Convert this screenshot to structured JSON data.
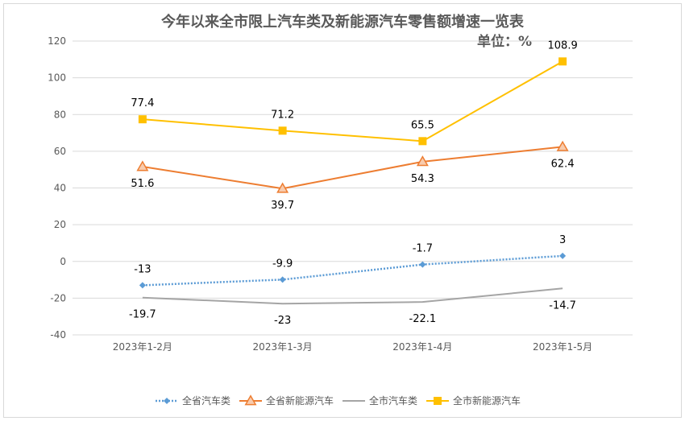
{
  "chart_data": {
    "type": "line",
    "title": "今年以来全市限上汽车类及新能源汽车零售额增速一览表",
    "subtitle": "单位：%",
    "categories": [
      "2023年1-2月",
      "2023年1-3月",
      "2023年1-4月",
      "2023年1-5月"
    ],
    "ylim": [
      -40,
      120
    ],
    "yticks": [
      -40,
      -20,
      0,
      20,
      40,
      60,
      80,
      100,
      120
    ],
    "grid": true,
    "legend_position": "bottom",
    "series": [
      {
        "name": "全省汽车类",
        "values": [
          -13,
          -9.9,
          -1.7,
          3
        ],
        "color": "#5b9bd5",
        "style": "dotted",
        "marker": "diamond",
        "label_pos": "above"
      },
      {
        "name": "全省新能源汽车",
        "values": [
          51.6,
          39.7,
          54.3,
          62.4
        ],
        "color": "#ed7d31",
        "style": "solid",
        "marker": "triangle",
        "label_pos": "below"
      },
      {
        "name": "全市汽车类",
        "values": [
          -19.7,
          -23,
          -22.1,
          -14.7
        ],
        "color": "#a5a5a5",
        "style": "solid",
        "marker": "none",
        "label_pos": "below"
      },
      {
        "name": "全市新能源汽车",
        "values": [
          77.4,
          71.2,
          65.5,
          108.9
        ],
        "color": "#ffc000",
        "style": "solid",
        "marker": "square",
        "label_pos": "above"
      }
    ]
  }
}
